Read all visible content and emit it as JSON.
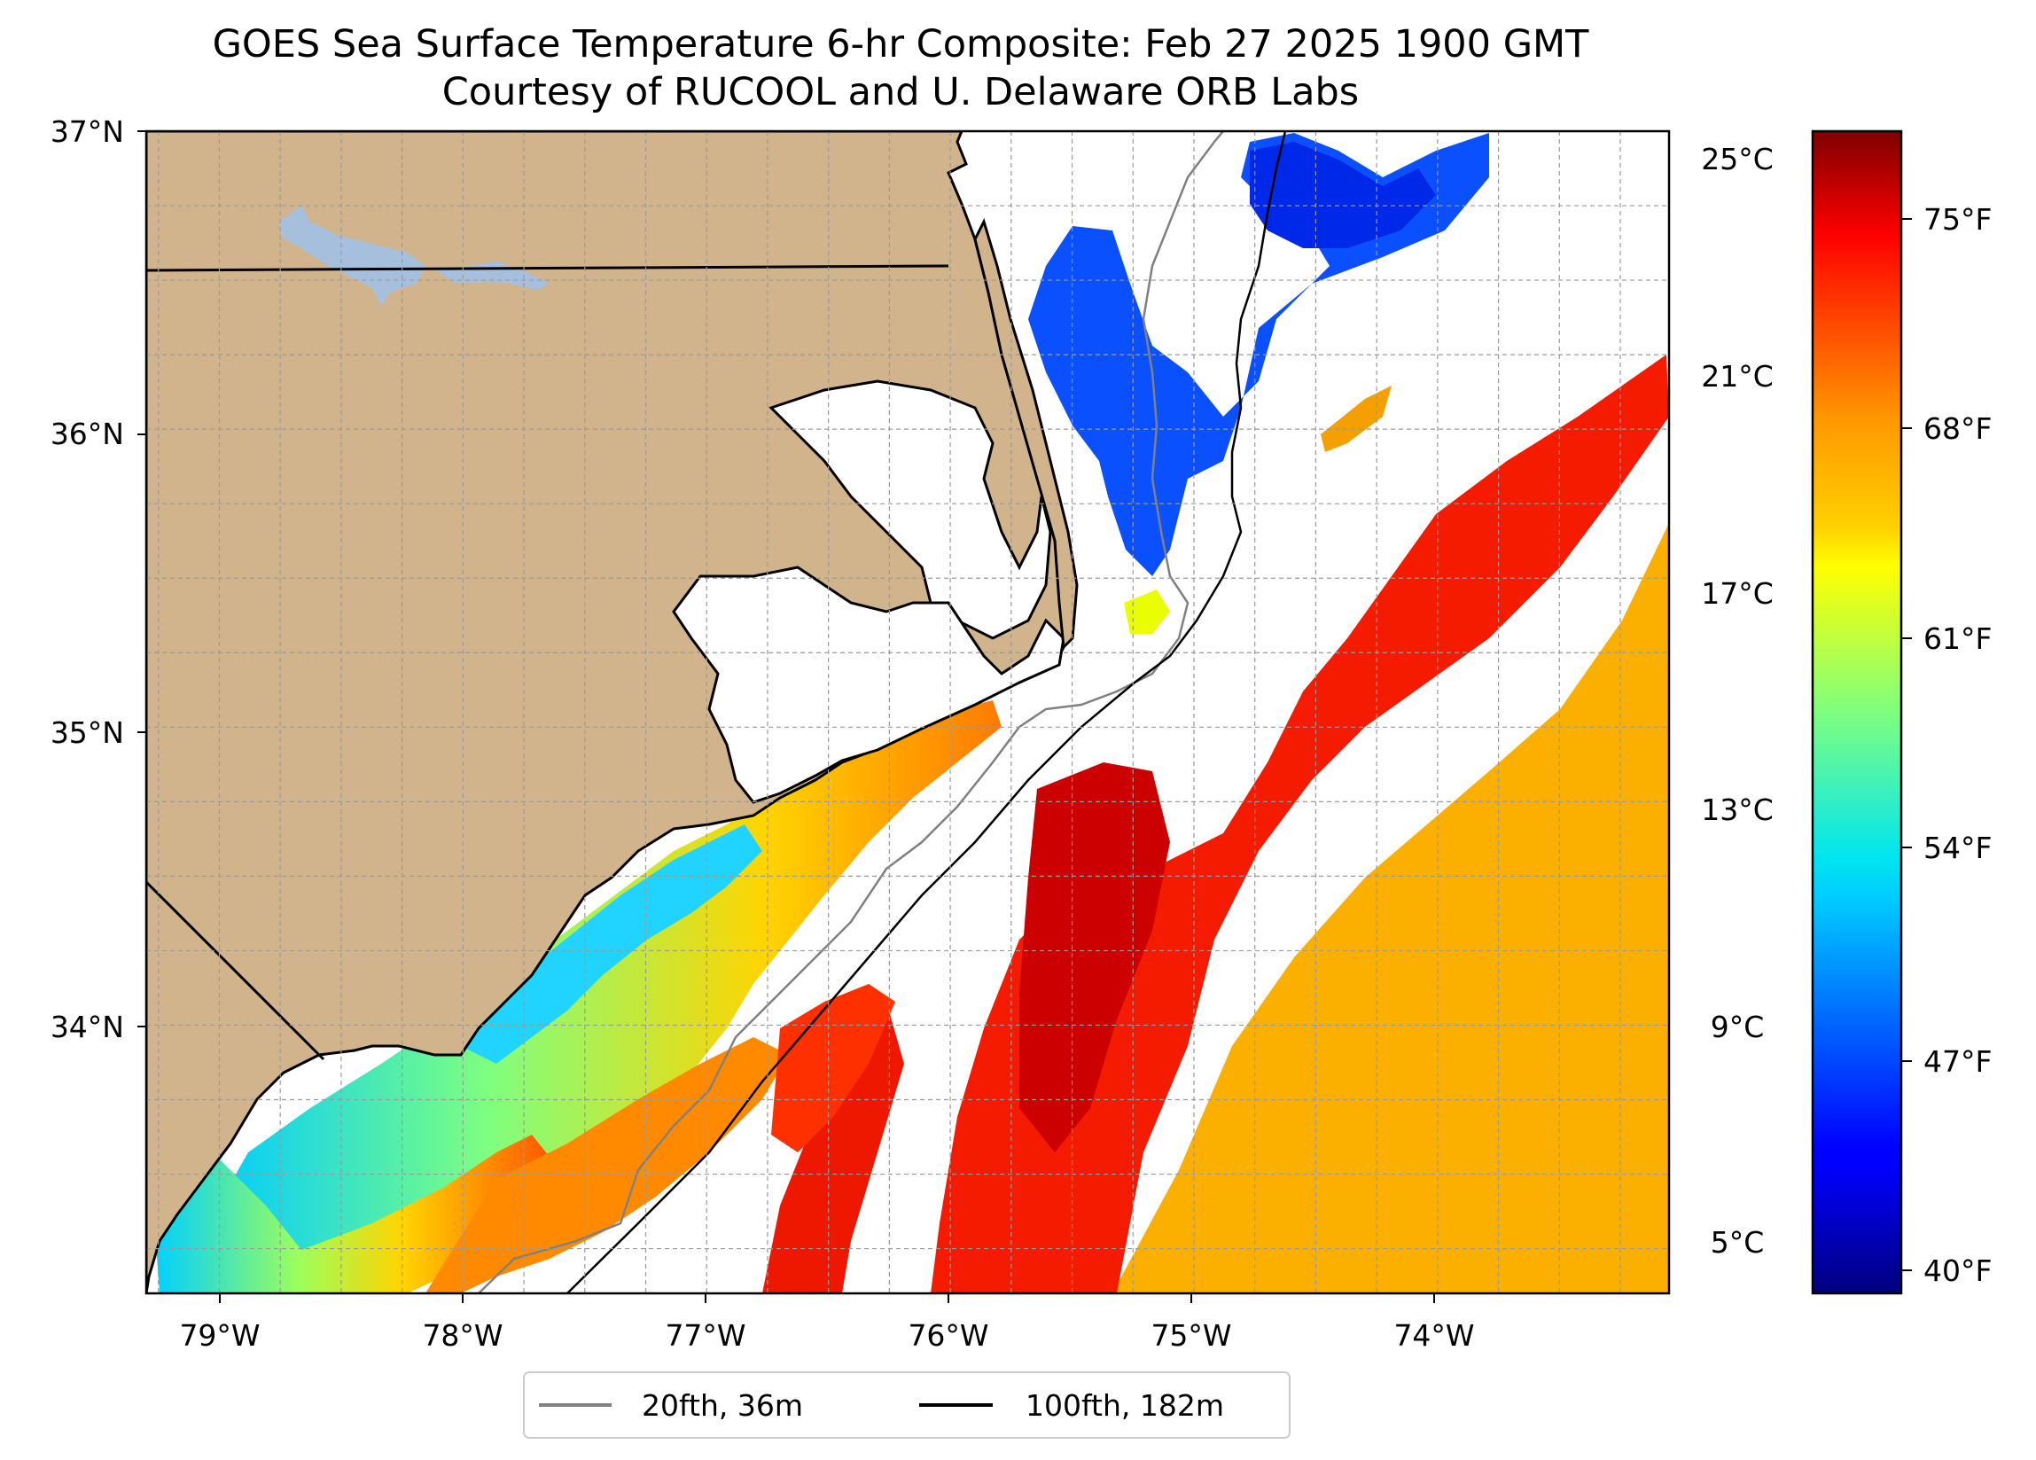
{
  "title": {
    "line1": "GOES Sea Surface Temperature 6-hr Composite: Feb 27 2025 1900 GMT",
    "line2": "Courtesy of RUCOOL and U. Delaware ORB Labs"
  },
  "map": {
    "lon_range": [
      -79.3,
      -73.05
    ],
    "lat_range": [
      33.1,
      37.0
    ],
    "gridlines": true,
    "land_color": "#d2b48c",
    "lake_color": "#a5bfdd",
    "lat_ticks": [
      {
        "value": 37,
        "label": "37°N"
      },
      {
        "value": 36,
        "label": "36°N"
      },
      {
        "value": 35,
        "label": "35°N"
      },
      {
        "value": 34,
        "label": "34°N"
      }
    ],
    "lon_ticks": [
      {
        "value": -79,
        "label": "79°W"
      },
      {
        "value": -78,
        "label": "78°W"
      },
      {
        "value": -77,
        "label": "77°W"
      },
      {
        "value": -76,
        "label": "76°W"
      },
      {
        "value": -75,
        "label": "75°W"
      },
      {
        "value": -74,
        "label": "74°W"
      }
    ]
  },
  "colorbar": {
    "colormap": "jet",
    "range_c": [
      4.2,
      26.0
    ],
    "celsius_ticks": [
      {
        "value": 25,
        "label": "25°C"
      },
      {
        "value": 21,
        "label": "21°C"
      },
      {
        "value": 17,
        "label": "17°C"
      },
      {
        "value": 13,
        "label": "13°C"
      },
      {
        "value": 9,
        "label": "9°C"
      },
      {
        "value": 5,
        "label": "5°C"
      }
    ],
    "fahrenheit_ticks": [
      {
        "value": 75,
        "label": "75°F"
      },
      {
        "value": 68,
        "label": "68°F"
      },
      {
        "value": 61,
        "label": "61°F"
      },
      {
        "value": 54,
        "label": "54°F"
      },
      {
        "value": 47,
        "label": "47°F"
      },
      {
        "value": 40,
        "label": "40°F"
      }
    ]
  },
  "legend": {
    "location": "below map",
    "items": [
      {
        "label": "20fth, 36m",
        "color": "#808080"
      },
      {
        "label": "100fth, 182m",
        "color": "#000000"
      }
    ]
  },
  "sst_regions": [
    {
      "name": "gulf-stream-east",
      "temp_c": 19.5
    },
    {
      "name": "gulf-stream-core",
      "temp_c": 24.0
    },
    {
      "name": "north-shelf-cold",
      "temp_c": 7.5
    },
    {
      "name": "south-shelf",
      "temp_c": 16.0
    }
  ]
}
